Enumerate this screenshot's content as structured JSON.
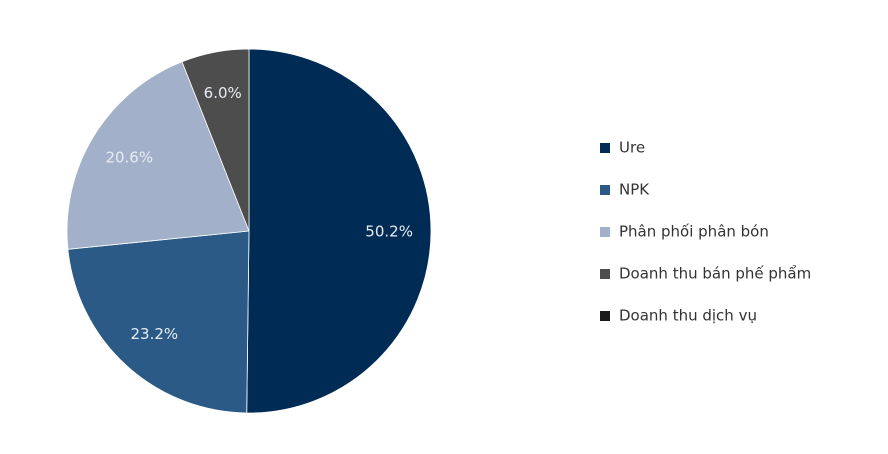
{
  "chart_data": {
    "type": "pie",
    "categories": [
      "Ure",
      "NPK",
      "Phân phối phân bón",
      "Doanh thu bán phế phẩm",
      "Doanh thu dịch vụ"
    ],
    "values": [
      50.2,
      23.2,
      20.6,
      6.0,
      0
    ],
    "value_labels": [
      "50.2%",
      "23.2%",
      "20.6%",
      "6.0%",
      null
    ],
    "colors": [
      "#002b55",
      "#2b5a87",
      "#a2b1c9",
      "#4d4d4d",
      "#1a1a1a"
    ]
  }
}
